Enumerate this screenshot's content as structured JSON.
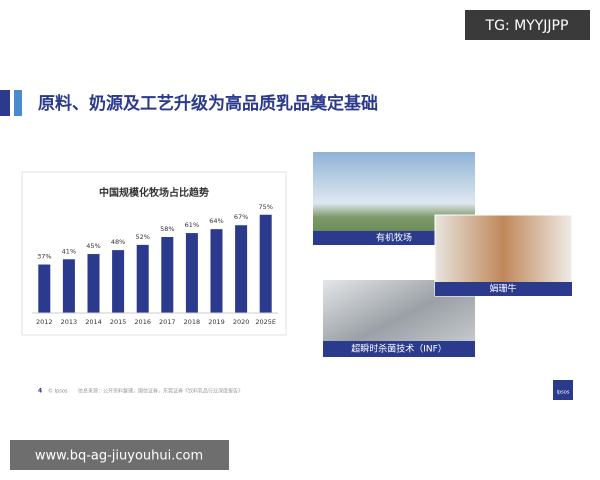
{
  "watermark_top": "TG: MYYJJPP",
  "header": {
    "title": "原料、奶源及工艺升级为高品质乳品奠定基础"
  },
  "chart_data": {
    "type": "bar",
    "title": "中国规模化牧场占比趋势",
    "categories": [
      "2012",
      "2013",
      "2014",
      "2015",
      "2016",
      "2017",
      "2018",
      "2019",
      "2020",
      "2025E"
    ],
    "values": [
      37,
      41,
      45,
      48,
      52,
      58,
      61,
      64,
      67,
      75
    ],
    "value_labels": [
      "37%",
      "41%",
      "45%",
      "48%",
      "52%",
      "58%",
      "61%",
      "64%",
      "67%",
      "75%"
    ],
    "color": "#2b3a8c"
  },
  "images": [
    {
      "label": "有机牧场"
    },
    {
      "label": "娟珊牛"
    },
    {
      "label": "超瞬时杀菌技术（INF）"
    }
  ],
  "footer": {
    "page": "4",
    "brand": "© Ipsos",
    "source": "信息来源：公开资料整理，国信证券，东莞证券《饮料乳品行业深度报告》",
    "logo": "Ipsos"
  },
  "watermark_bottom": "www.bq-ag-jiuyouhui.com"
}
